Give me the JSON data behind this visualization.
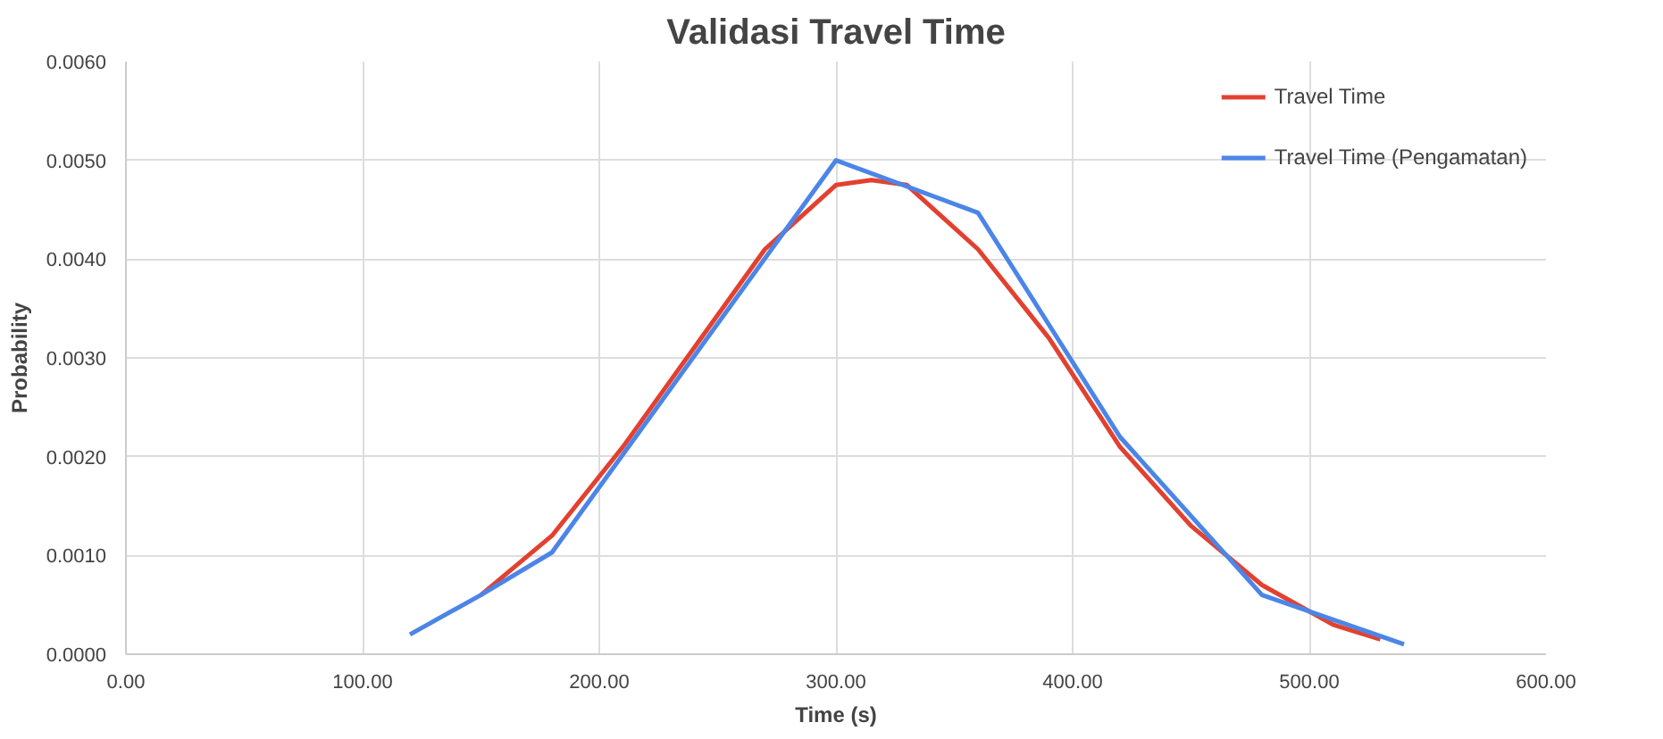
{
  "chart_data": {
    "type": "line",
    "title": "Validasi Travel Time",
    "xlabel": "Time (s)",
    "ylabel": "Probability",
    "xlim": [
      0,
      600
    ],
    "ylim": [
      0,
      0.006
    ],
    "xticks": [
      {
        "value": 0,
        "label": "0.00"
      },
      {
        "value": 100,
        "label": "100.00"
      },
      {
        "value": 200,
        "label": "200.00"
      },
      {
        "value": 300,
        "label": "300.00"
      },
      {
        "value": 400,
        "label": "400.00"
      },
      {
        "value": 500,
        "label": "500.00"
      },
      {
        "value": 600,
        "label": "600.00"
      }
    ],
    "yticks": [
      {
        "value": 0,
        "label": "0.0000"
      },
      {
        "value": 0.001,
        "label": "0.0010"
      },
      {
        "value": 0.002,
        "label": "0.0020"
      },
      {
        "value": 0.003,
        "label": "0.0030"
      },
      {
        "value": 0.004,
        "label": "0.0040"
      },
      {
        "value": 0.005,
        "label": "0.0050"
      },
      {
        "value": 0.006,
        "label": "0.0060"
      }
    ],
    "grid": true,
    "legend": "top right",
    "marker": "none",
    "line_style": "solid",
    "series": [
      {
        "name": "Travel Time",
        "color": "#e2412f",
        "x": [
          150,
          180,
          210,
          240,
          270,
          300,
          315,
          330,
          360,
          390,
          420,
          450,
          480,
          510,
          530
        ],
        "values": [
          0.0006,
          0.0012,
          0.0021,
          0.0031,
          0.0041,
          0.00475,
          0.0048,
          0.00475,
          0.0041,
          0.0032,
          0.0021,
          0.0013,
          0.0007,
          0.0003,
          0.00015
        ]
      },
      {
        "name": "Travel Time (Pengamatan)",
        "color": "#4c85e8",
        "x": [
          120,
          150,
          180,
          300,
          360,
          420,
          480,
          540
        ],
        "values": [
          0.0002,
          0.0006,
          0.00103,
          0.005,
          0.00447,
          0.0022,
          0.0006,
          0.0001
        ]
      }
    ]
  }
}
